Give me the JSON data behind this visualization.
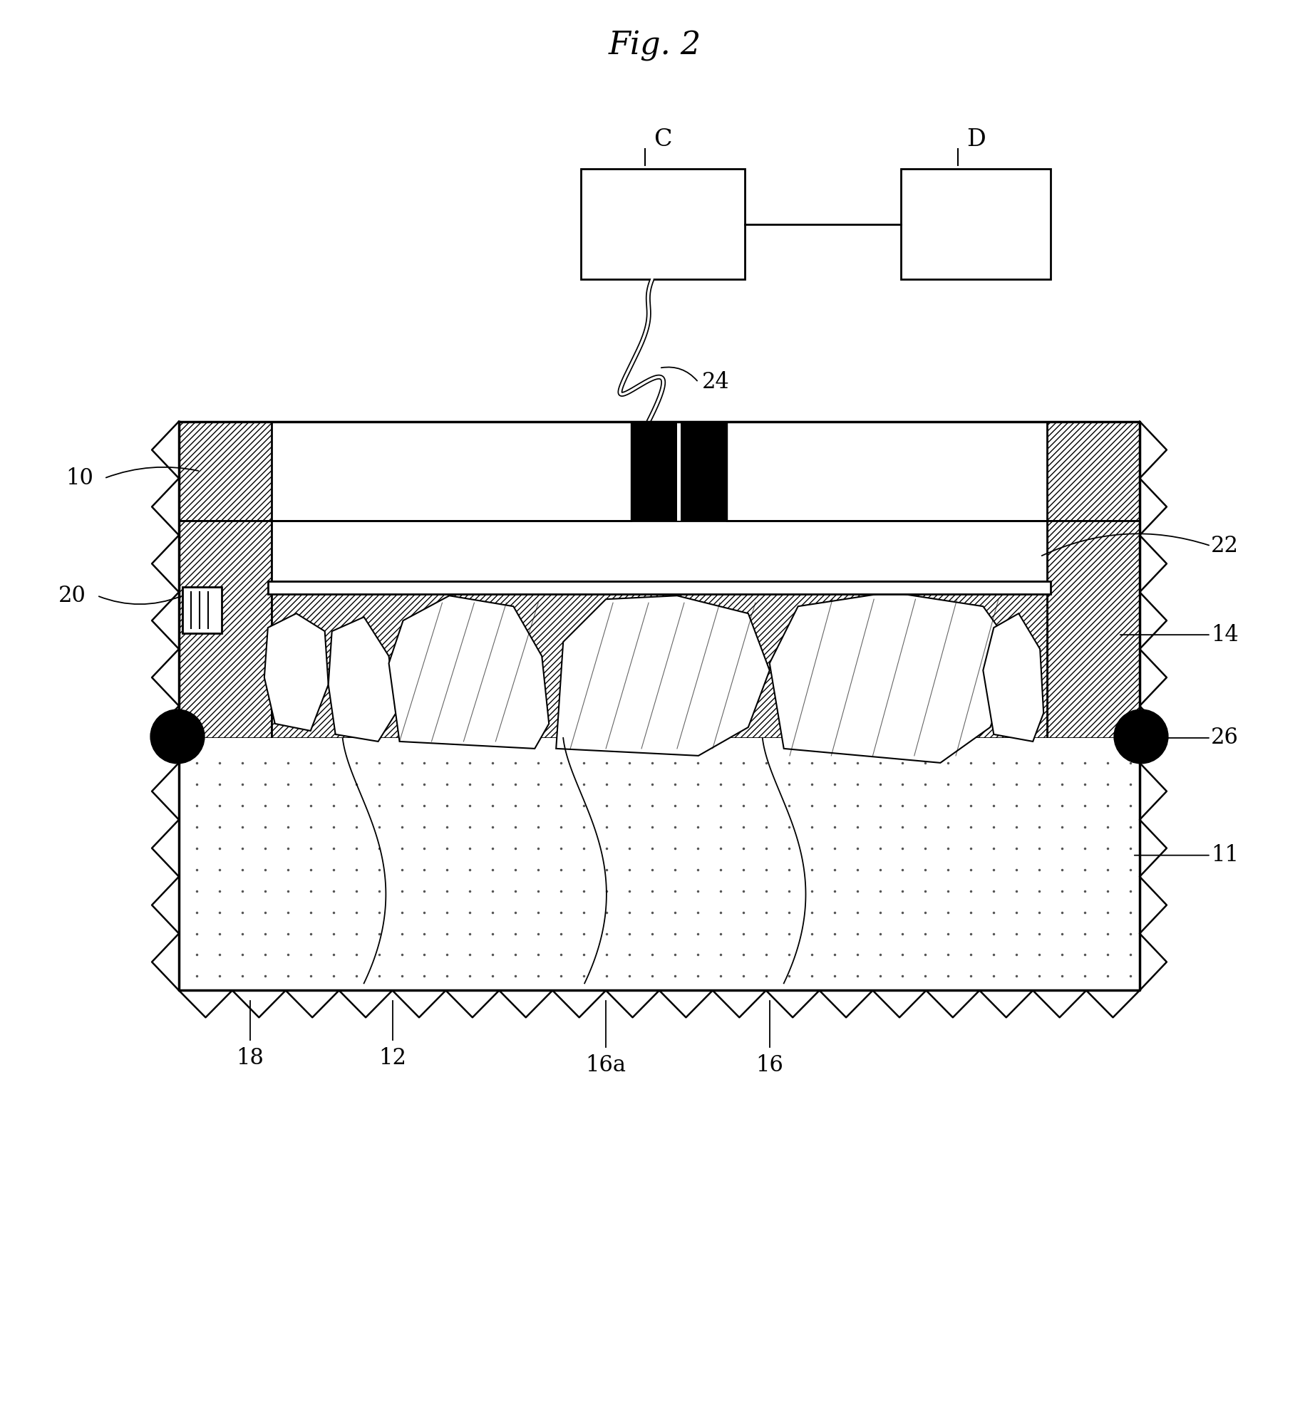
{
  "title": "Fig. 2",
  "bg_color": "#ffffff",
  "line_color": "#000000",
  "label_C": "C",
  "label_D": "D",
  "label_24": "24",
  "label_10": "10",
  "label_11": "11",
  "label_12": "12",
  "label_14": "14",
  "label_16": "16",
  "label_16a": "16a",
  "label_18": "18",
  "label_20": "20",
  "label_22": "22",
  "label_26": "26",
  "fig_width": 18.38,
  "fig_height": 19.71
}
